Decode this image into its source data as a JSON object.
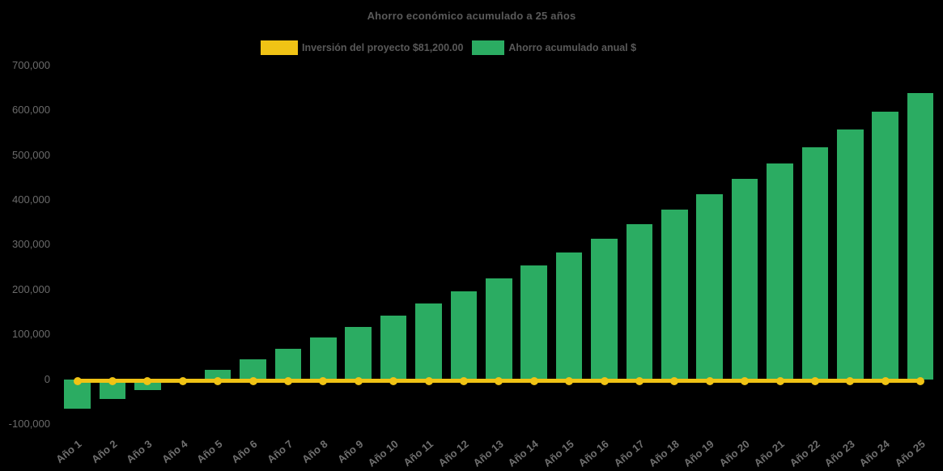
{
  "chart_data": {
    "type": "bar",
    "title": "Ahorro económico acumulado a 25 años",
    "background_color": "#000000",
    "grid": false,
    "legend_position": "top-center",
    "xlabel": "",
    "ylabel": "",
    "ylim": [
      -100000,
      700000
    ],
    "ytick_step": 100000,
    "ytick_labels": [
      "-100,000",
      "0",
      "100,000",
      "200,000",
      "300,000",
      "400,000",
      "500,000",
      "600,000",
      "700,000"
    ],
    "categories": [
      "Año 1",
      "Año 2",
      "Año 3",
      "Año 4",
      "Año 5",
      "Año 6",
      "Año 7",
      "Año 8",
      "Año 9",
      "Año 10",
      "Año 11",
      "Año 12",
      "Año 13",
      "Año 14",
      "Año 15",
      "Año 16",
      "Año 17",
      "Año 18",
      "Año 19",
      "Año 20",
      "Año 21",
      "Año 22",
      "Año 23",
      "Año 24",
      "Año 25"
    ],
    "series": [
      {
        "name": "Inversión del proyecto $81,200.00",
        "type": "line",
        "color": "#F0C315",
        "marker": "circle",
        "values": [
          0,
          0,
          0,
          0,
          0,
          0,
          0,
          0,
          0,
          0,
          0,
          0,
          0,
          0,
          0,
          0,
          0,
          0,
          0,
          0,
          0,
          0,
          0,
          0,
          0
        ]
      },
      {
        "name": "Ahorro acumulado anual $",
        "type": "bar",
        "color": "#2BAC62",
        "values": [
          -65000,
          -44000,
          -23000,
          -2000,
          21000,
          45000,
          69000,
          93000,
          117000,
          143000,
          169000,
          197000,
          225000,
          254000,
          283000,
          313000,
          346000,
          378000,
          412000,
          447000,
          482000,
          518000,
          557000,
          596000,
          638000
        ]
      }
    ]
  }
}
